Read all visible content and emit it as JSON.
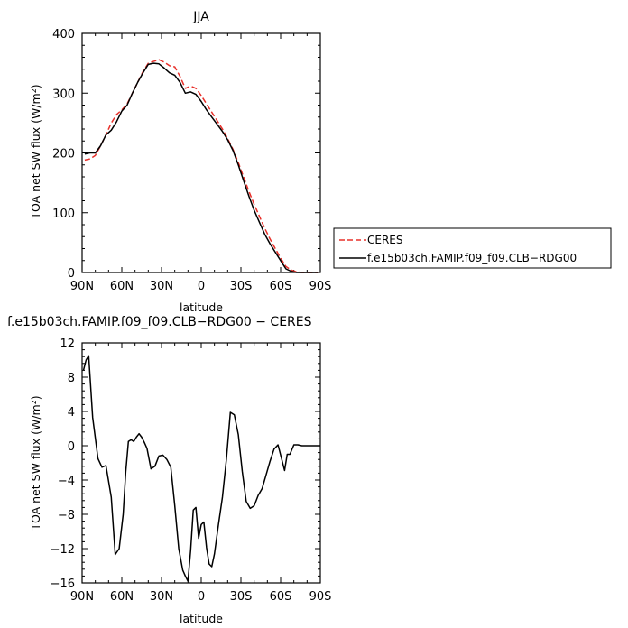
{
  "chart_data": [
    {
      "type": "line",
      "title": "JJA",
      "xlabel": "latitude",
      "ylabel": "TOA net SW flux (W/m²)",
      "xlim": [
        90,
        -90
      ],
      "ylim": [
        0,
        400
      ],
      "x_ticks": [
        90,
        60,
        30,
        0,
        -30,
        -60,
        -90
      ],
      "x_tick_labels": [
        "90N",
        "60N",
        "30N",
        "0",
        "30S",
        "60S",
        "90S"
      ],
      "y_ticks": [
        0,
        100,
        200,
        300,
        400
      ],
      "y_tick_labels": [
        "0",
        "100",
        "200",
        "300",
        "400"
      ],
      "grid": false,
      "legend_position": "right",
      "series": [
        {
          "name": "CERES",
          "color": "#e8302a",
          "dash": "dashed",
          "x": [
            88,
            84,
            80,
            76,
            72,
            68,
            64,
            60,
            56,
            52,
            48,
            44,
            40,
            36,
            32,
            28,
            24,
            20,
            16,
            12,
            8,
            4,
            0,
            -4,
            -8,
            -12,
            -16,
            -20,
            -24,
            -28,
            -32,
            -36,
            -40,
            -44,
            -48,
            -52,
            -56,
            -60,
            -64,
            -68,
            -72,
            -76,
            -80,
            -84,
            -88
          ],
          "values": [
            188,
            190,
            196,
            212,
            230,
            250,
            264,
            272,
            282,
            300,
            318,
            336,
            350,
            353,
            356,
            352,
            346,
            344,
            328,
            308,
            312,
            308,
            296,
            282,
            268,
            254,
            240,
            224,
            206,
            184,
            160,
            136,
            114,
            94,
            74,
            56,
            40,
            24,
            10,
            4,
            1,
            0,
            0,
            0,
            0
          ]
        },
        {
          "name": "f.e15b03ch.FAMIP.f09_f09.CLB−RDG00",
          "color": "#000000",
          "dash": "solid",
          "x": [
            88,
            84,
            80,
            76,
            72,
            68,
            64,
            60,
            56,
            52,
            48,
            44,
            40,
            36,
            32,
            28,
            24,
            20,
            16,
            12,
            8,
            4,
            0,
            -4,
            -8,
            -12,
            -16,
            -20,
            -24,
            -28,
            -32,
            -36,
            -40,
            -44,
            -48,
            -52,
            -56,
            -60,
            -64,
            -68,
            -72,
            -76,
            -80,
            -84,
            -88
          ],
          "values": [
            198,
            200,
            200,
            212,
            230,
            238,
            252,
            270,
            280,
            300,
            318,
            334,
            348,
            350,
            349,
            342,
            334,
            330,
            318,
            300,
            302,
            298,
            286,
            272,
            260,
            248,
            236,
            222,
            204,
            180,
            154,
            128,
            104,
            84,
            64,
            48,
            34,
            20,
            6,
            2,
            0,
            0,
            0,
            0,
            0
          ]
        }
      ]
    },
    {
      "type": "line",
      "title": "f.e15b03ch.FAMIP.f09_f09.CLB−RDG00 − CERES",
      "xlabel": "latitude",
      "ylabel": "TOA net SW flux (W/m²)",
      "xlim": [
        90,
        -90
      ],
      "ylim": [
        -16,
        12
      ],
      "x_ticks": [
        90,
        60,
        30,
        0,
        -30,
        -60,
        -90
      ],
      "x_tick_labels": [
        "90N",
        "60N",
        "30N",
        "0",
        "30S",
        "60S",
        "90S"
      ],
      "y_ticks": [
        -16,
        -12,
        -8,
        -4,
        0,
        4,
        8,
        12
      ],
      "y_tick_labels": [
        "−16",
        "−12",
        "−8",
        "−4",
        "0",
        "4",
        "8",
        "12"
      ],
      "grid": false,
      "series": [
        {
          "color": "#000000",
          "x": [
            89,
            87,
            85,
            82,
            78,
            75,
            72,
            68,
            65,
            62,
            59,
            57,
            55,
            53,
            51,
            49,
            47,
            45,
            43,
            41,
            38,
            35,
            32,
            29,
            26,
            23,
            20,
            17,
            14,
            12,
            10,
            8,
            6,
            4,
            2,
            0,
            -2,
            -4,
            -6,
            -8,
            -10,
            -13,
            -16,
            -19,
            -22,
            -25,
            -28,
            -31,
            -34,
            -37,
            -40,
            -43,
            -46,
            -49,
            -52,
            -55,
            -58,
            -61,
            -63,
            -65,
            -67,
            -70,
            -73,
            -76,
            -80,
            -84,
            -88,
            -90
          ],
          "values": [
            8.8,
            10.0,
            10.5,
            3.3,
            -1.5,
            -2.5,
            -2.3,
            -6.0,
            -12.7,
            -12.0,
            -8.0,
            -3.0,
            0.5,
            0.7,
            0.5,
            1.0,
            1.4,
            1.0,
            0.4,
            -0.3,
            -2.7,
            -2.4,
            -1.2,
            -1.1,
            -1.6,
            -2.5,
            -7.0,
            -12.0,
            -14.5,
            -15.2,
            -15.8,
            -12.2,
            -7.5,
            -7.2,
            -10.8,
            -9.2,
            -8.9,
            -11.9,
            -13.8,
            -14.1,
            -12.6,
            -9.2,
            -6.0,
            -1.6,
            3.9,
            3.6,
            1.3,
            -3.0,
            -6.5,
            -7.3,
            -7.0,
            -5.8,
            -5.0,
            -3.4,
            -1.8,
            -0.4,
            0.1,
            -1.7,
            -2.9,
            -1.0,
            -1.0,
            0.1,
            0.1,
            0.0,
            0.0,
            0.0,
            0.0,
            0.0
          ]
        }
      ]
    }
  ]
}
